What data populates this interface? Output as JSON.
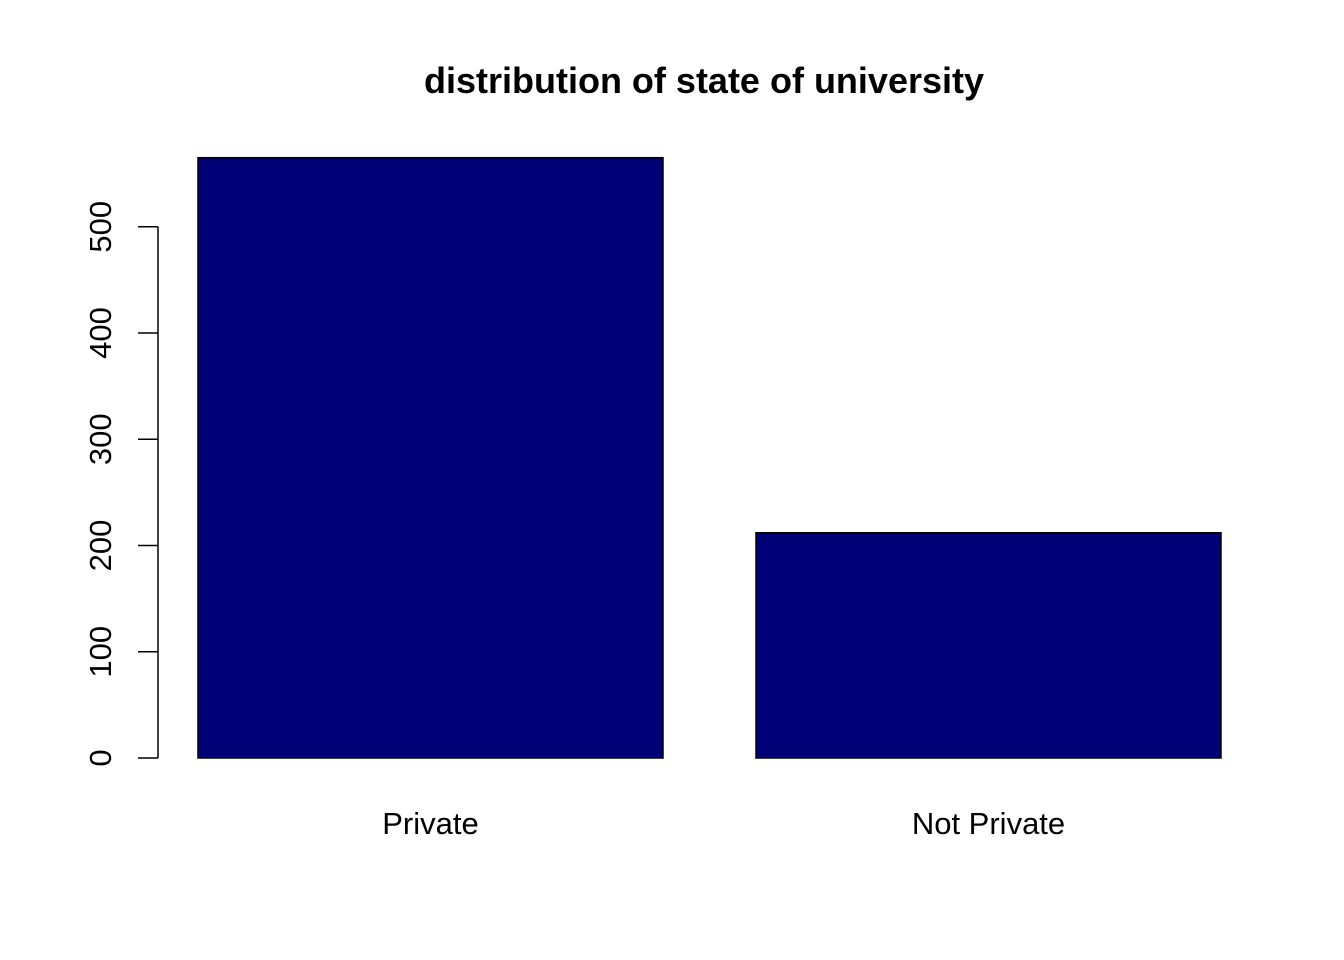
{
  "chart_data": {
    "type": "bar",
    "title": "distribution of state of university",
    "xlabel": "",
    "ylabel": "",
    "categories": [
      "Private",
      "Not Private"
    ],
    "values": [
      565,
      212
    ],
    "yticks": [
      0,
      100,
      200,
      300,
      400,
      500
    ],
    "ylim": [
      0,
      565
    ],
    "grid": false,
    "legend": "none",
    "colors": {
      "bar_fill": "#000077",
      "bar_stroke": "#000000",
      "axis": "#000000",
      "background": "#ffffff"
    }
  }
}
